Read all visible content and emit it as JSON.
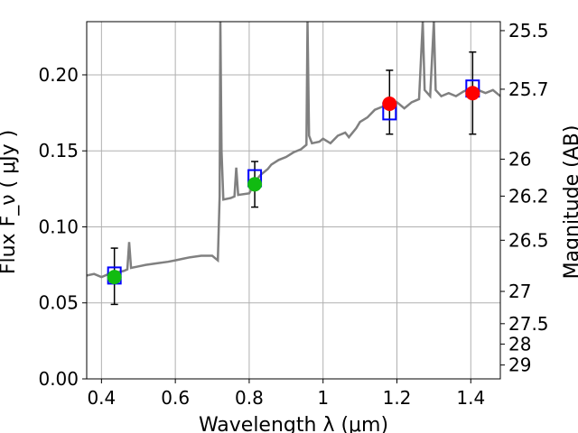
{
  "chart_data": {
    "type": "scatter",
    "title": "",
    "xlabel": "Wavelength  λ (μm)",
    "ylabel": "Flux  F_ν  ( μJy )",
    "y2label": "Magnitude (AB)",
    "xlim": [
      0.36,
      1.48
    ],
    "ylim": [
      0.0,
      0.235
    ],
    "grid": true,
    "xticks": [
      {
        "value": 0.4,
        "label": "0.4"
      },
      {
        "value": 0.6,
        "label": "0.6"
      },
      {
        "value": 0.8,
        "label": "0.8"
      },
      {
        "value": 1.0,
        "label": "1"
      },
      {
        "value": 1.2,
        "label": "1.2"
      },
      {
        "value": 1.4,
        "label": "1.4"
      }
    ],
    "yticks": [
      {
        "value": 0.0,
        "label": "0.00"
      },
      {
        "value": 0.05,
        "label": "0.05"
      },
      {
        "value": 0.1,
        "label": "0.10"
      },
      {
        "value": 0.15,
        "label": "0.15"
      },
      {
        "value": 0.2,
        "label": "0.20"
      }
    ],
    "y2ticks": [
      {
        "value": 25.5,
        "label": "25.5"
      },
      {
        "value": 25.7,
        "label": "25.7"
      },
      {
        "value": 26.0,
        "label": "26"
      },
      {
        "value": 26.2,
        "label": "26.2"
      },
      {
        "value": 26.5,
        "label": "26.5"
      },
      {
        "value": 27.0,
        "label": "27"
      },
      {
        "value": 27.5,
        "label": "27.5"
      },
      {
        "value": 28.0,
        "label": "28"
      },
      {
        "value": 29.0,
        "label": "29"
      }
    ],
    "colors": {
      "spectrum": "#808080",
      "model_boxes": "#0000ff",
      "optical_points": "#11bb11",
      "nir_points": "#ff0000",
      "errorbars": "#000000",
      "grid": "#b0b0b0"
    },
    "spectrum": [
      [
        0.36,
        0.068
      ],
      [
        0.38,
        0.069
      ],
      [
        0.4,
        0.067
      ],
      [
        0.42,
        0.069
      ],
      [
        0.44,
        0.07
      ],
      [
        0.46,
        0.071
      ],
      [
        0.47,
        0.072
      ],
      [
        0.475,
        0.09
      ],
      [
        0.48,
        0.073
      ],
      [
        0.5,
        0.074
      ],
      [
        0.52,
        0.075
      ],
      [
        0.55,
        0.076
      ],
      [
        0.58,
        0.077
      ],
      [
        0.6,
        0.078
      ],
      [
        0.62,
        0.079
      ],
      [
        0.64,
        0.08
      ],
      [
        0.67,
        0.081
      ],
      [
        0.7,
        0.081
      ],
      [
        0.71,
        0.079
      ],
      [
        0.715,
        0.078
      ],
      [
        0.72,
        0.12
      ],
      [
        0.722,
        0.235
      ],
      [
        0.725,
        0.15
      ],
      [
        0.73,
        0.118
      ],
      [
        0.75,
        0.119
      ],
      [
        0.76,
        0.12
      ],
      [
        0.765,
        0.139
      ],
      [
        0.77,
        0.121
      ],
      [
        0.8,
        0.122
      ],
      [
        0.82,
        0.131
      ],
      [
        0.83,
        0.134
      ],
      [
        0.85,
        0.138
      ],
      [
        0.86,
        0.141
      ],
      [
        0.88,
        0.144
      ],
      [
        0.9,
        0.146
      ],
      [
        0.92,
        0.149
      ],
      [
        0.94,
        0.151
      ],
      [
        0.955,
        0.154
      ],
      [
        0.958,
        0.235
      ],
      [
        0.962,
        0.16
      ],
      [
        0.97,
        0.155
      ],
      [
        0.99,
        0.156
      ],
      [
        1.0,
        0.158
      ],
      [
        1.02,
        0.155
      ],
      [
        1.04,
        0.16
      ],
      [
        1.06,
        0.162
      ],
      [
        1.07,
        0.159
      ],
      [
        1.09,
        0.165
      ],
      [
        1.1,
        0.169
      ],
      [
        1.12,
        0.172
      ],
      [
        1.14,
        0.177
      ],
      [
        1.16,
        0.179
      ],
      [
        1.18,
        0.18
      ],
      [
        1.2,
        0.182
      ],
      [
        1.22,
        0.178
      ],
      [
        1.24,
        0.182
      ],
      [
        1.26,
        0.184
      ],
      [
        1.27,
        0.235
      ],
      [
        1.275,
        0.19
      ],
      [
        1.29,
        0.186
      ],
      [
        1.3,
        0.235
      ],
      [
        1.305,
        0.19
      ],
      [
        1.32,
        0.186
      ],
      [
        1.34,
        0.188
      ],
      [
        1.36,
        0.186
      ],
      [
        1.38,
        0.189
      ],
      [
        1.4,
        0.191
      ],
      [
        1.42,
        0.19
      ],
      [
        1.44,
        0.188
      ],
      [
        1.46,
        0.19
      ],
      [
        1.48,
        0.186
      ]
    ],
    "model_boxes": [
      {
        "x": 0.435,
        "y": 0.068
      },
      {
        "x": 0.815,
        "y": 0.132
      },
      {
        "x": 1.18,
        "y": 0.176
      },
      {
        "x": 1.405,
        "y": 0.191
      }
    ],
    "observations": [
      {
        "x": 0.435,
        "y": 0.067,
        "err_low": 0.049,
        "err_high": 0.086,
        "group": "optical"
      },
      {
        "x": 0.815,
        "y": 0.128,
        "err_low": 0.113,
        "err_high": 0.143,
        "group": "optical"
      },
      {
        "x": 1.18,
        "y": 0.181,
        "err_low": 0.161,
        "err_high": 0.203,
        "group": "nir"
      },
      {
        "x": 1.405,
        "y": 0.188,
        "err_low": 0.161,
        "err_high": 0.215,
        "group": "nir"
      }
    ]
  }
}
